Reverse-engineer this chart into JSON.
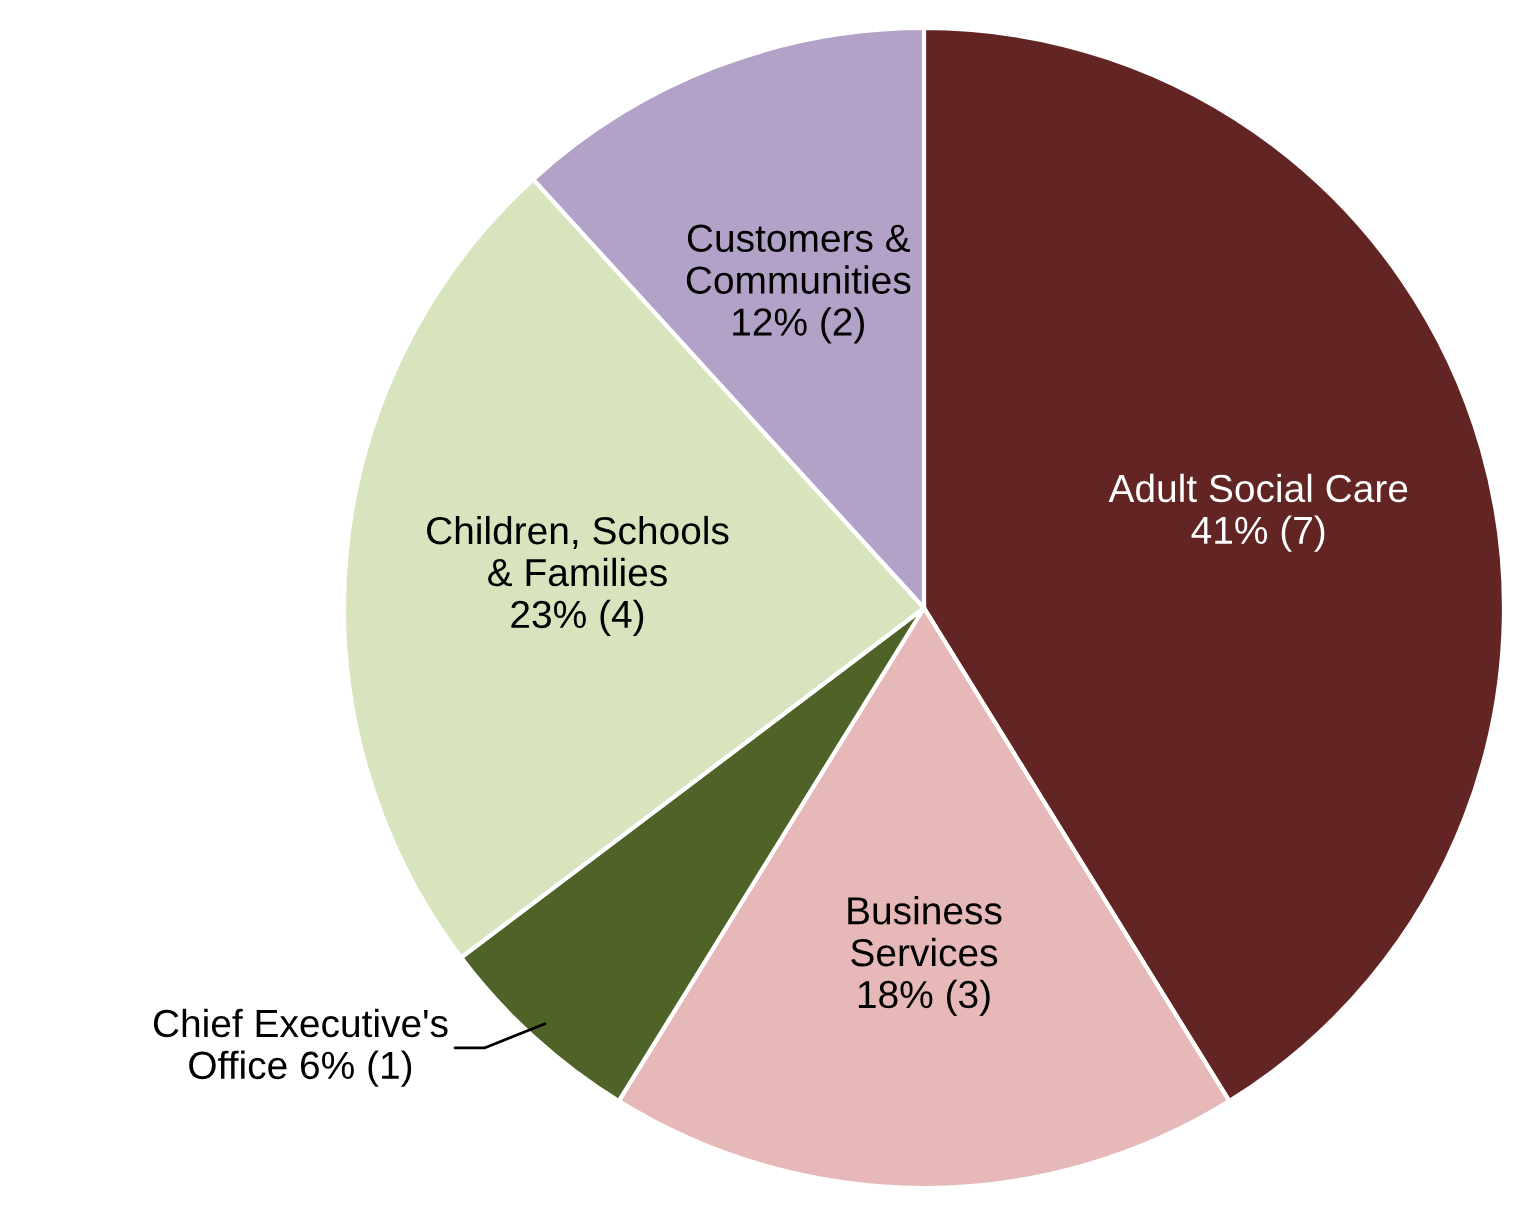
{
  "chart_data": {
    "type": "pie",
    "categories": [
      "Adult Social Care",
      "Business\nServices",
      "Chief Executive's\nOffice",
      "Children, Schools\n& Families",
      "Customers &\nCommunities"
    ],
    "values": [
      7,
      3,
      1,
      4,
      2
    ],
    "value_labels": [
      "41% (7)",
      "18% (3)",
      "6% (1)",
      "23% (4)",
      "12% (2)"
    ],
    "colors": [
      "#632523",
      "#e6b9b8",
      "#4f6228",
      "#d7e4bd",
      "#b3a2c7"
    ],
    "legend": false
  }
}
